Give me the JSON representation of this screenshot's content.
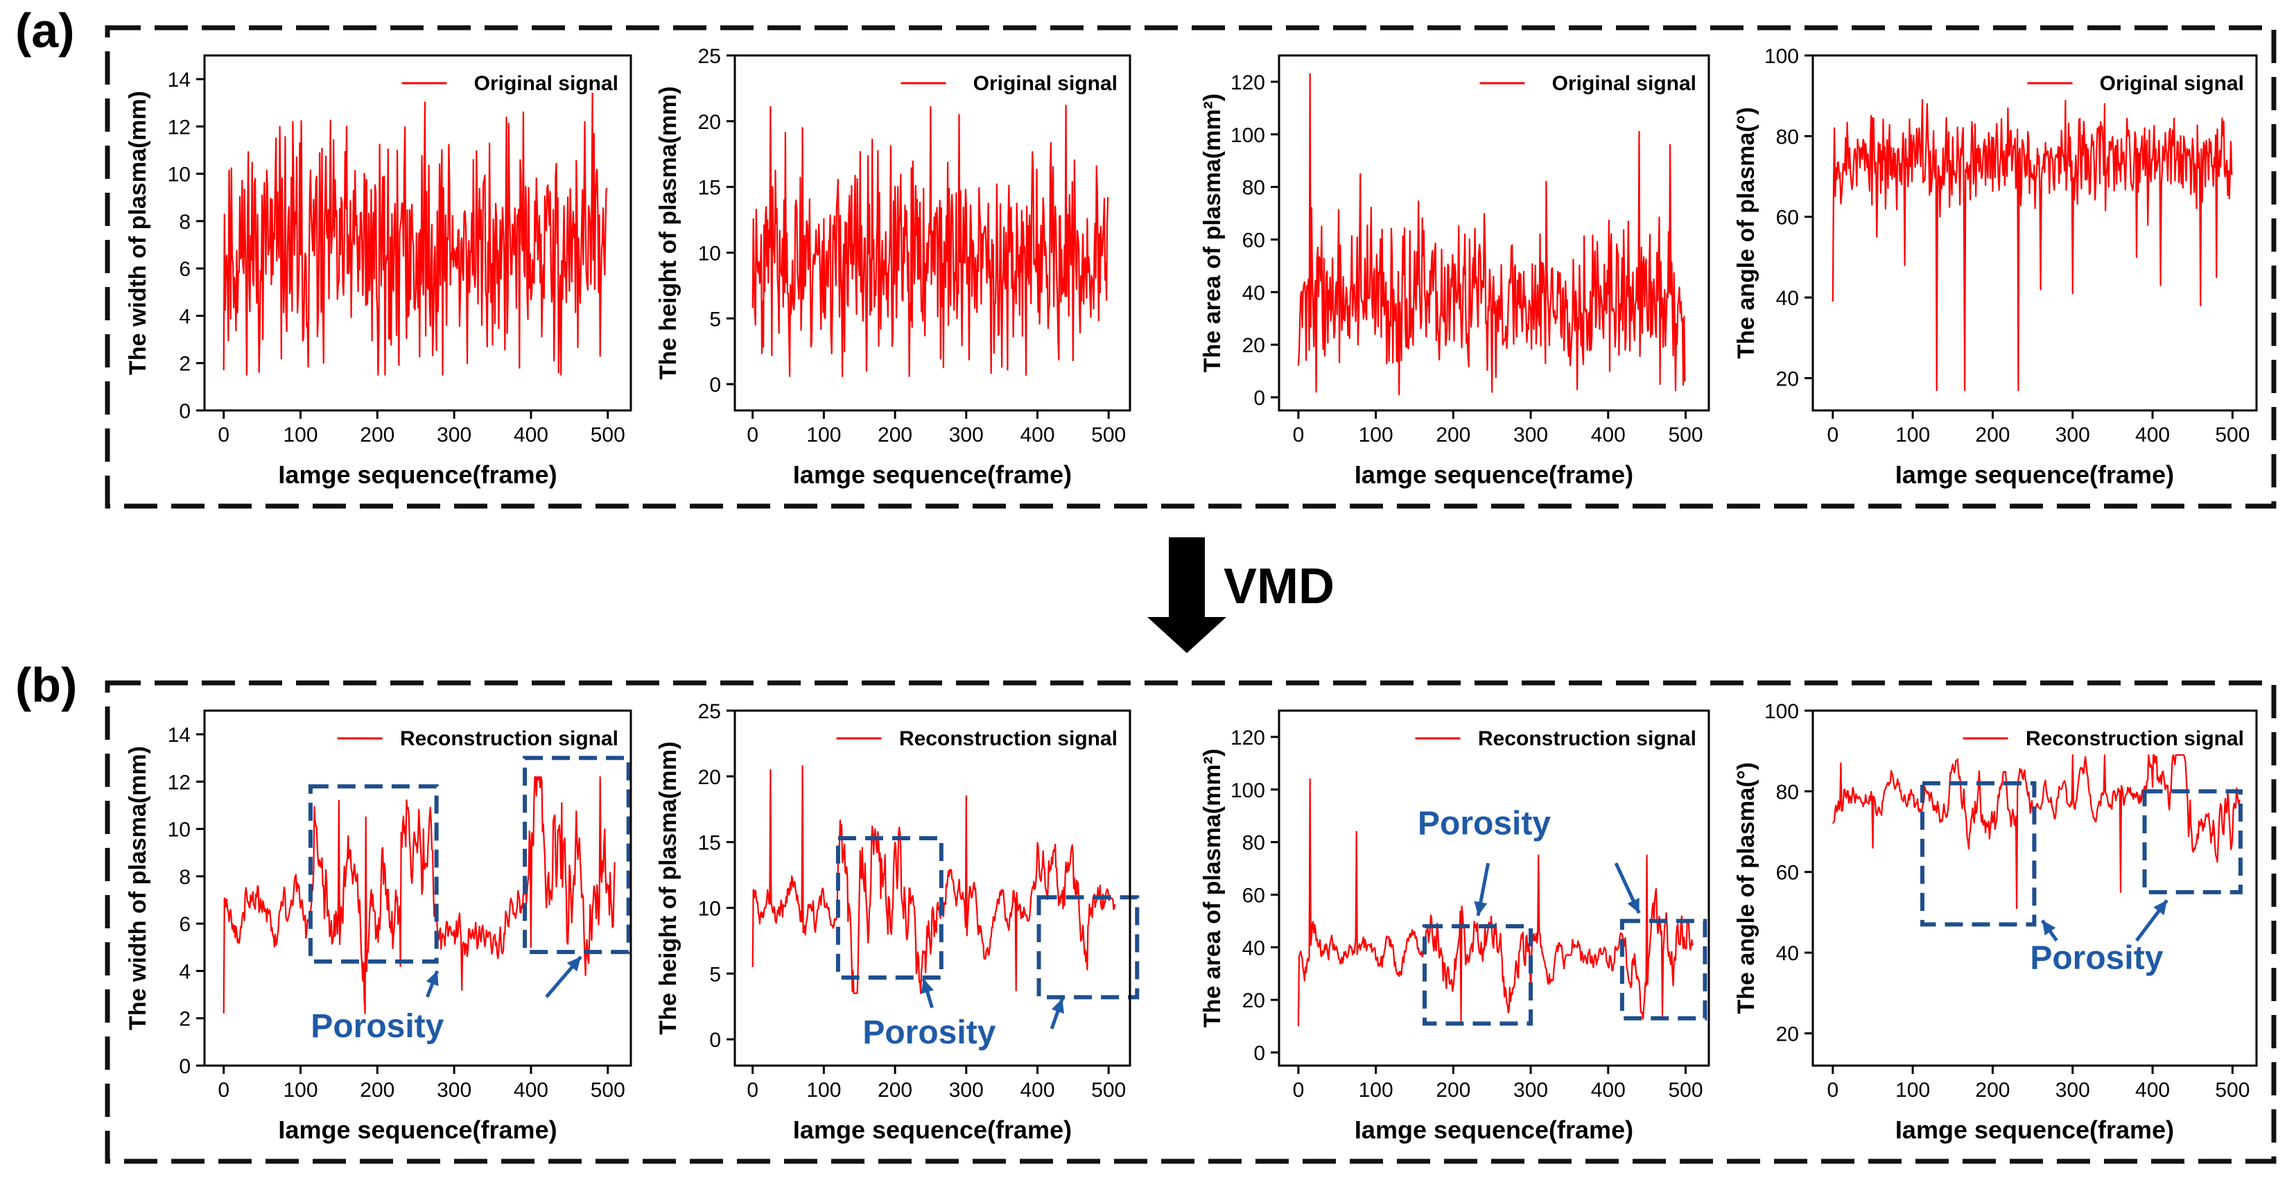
{
  "panel_labels": {
    "a": "(a)",
    "b": "(b)"
  },
  "arrow_label": "VMD",
  "colors": {
    "signal": "#ff0000",
    "box": "#1f4e8c",
    "annotation": "#1f5aa6",
    "frame": "#111111"
  },
  "chart_data": [
    {
      "id": "a1",
      "type": "line",
      "xlabel": "Iamge sequence(frame)",
      "ylabel": "The width of plasma(mm)",
      "legend": "Original signal",
      "xlim": [
        -25,
        530
      ],
      "ylim": [
        0,
        15
      ],
      "xticks": [
        0,
        100,
        200,
        300,
        400,
        500
      ],
      "yticks": [
        0,
        2,
        4,
        6,
        8,
        10,
        12,
        14
      ],
      "series": [
        {
          "name": "Original signal",
          "n": 500,
          "mean": 6.8,
          "amp": 2.4,
          "min_val": 1.5,
          "max_val": 13.4,
          "seed": 11,
          "smooth": 1,
          "spikes": [
            [
              0,
              1.7
            ],
            [
              160,
              12
            ],
            [
              390,
              12.6
            ],
            [
              470,
              12.2
            ],
            [
              480,
              13.4
            ],
            [
              130,
              2.0
            ],
            [
              210,
              1.5
            ],
            [
              385,
              1.8
            ],
            [
              430,
              2.1
            ],
            [
              490,
              2.3
            ]
          ]
        }
      ]
    },
    {
      "id": "a2",
      "type": "line",
      "xlabel": "Iamge sequence(frame)",
      "ylabel": "The height of plasma(mm)",
      "legend": "Original signal",
      "xlim": [
        -25,
        530
      ],
      "ylim": [
        -2,
        25
      ],
      "xticks": [
        0,
        100,
        200,
        300,
        400,
        500
      ],
      "yticks": [
        0,
        5,
        10,
        15,
        20,
        25
      ],
      "series": [
        {
          "name": "Original signal",
          "n": 500,
          "mean": 9.5,
          "amp": 3.6,
          "min_val": 0.6,
          "max_val": 21.3,
          "seed": 23,
          "smooth": 1,
          "spikes": [
            [
              0,
              5.8
            ],
            [
              25,
              21.1
            ],
            [
              250,
              21.1
            ],
            [
              440,
              21.2
            ],
            [
              290,
              20.5
            ],
            [
              70,
              19.5
            ],
            [
              160,
              1.0
            ],
            [
              220,
              0.6
            ],
            [
              350,
              1.3
            ],
            [
              450,
              1.8
            ]
          ]
        }
      ]
    },
    {
      "id": "a3",
      "type": "line",
      "xlabel": "Iamge sequence(frame)",
      "ylabel": "The area of plasma(mm²)",
      "legend": "Original signal",
      "xlim": [
        -25,
        530
      ],
      "ylim": [
        -5,
        130
      ],
      "xticks": [
        0,
        100,
        200,
        300,
        400,
        500
      ],
      "yticks": [
        0,
        20,
        40,
        60,
        80,
        100,
        120
      ],
      "series": [
        {
          "name": "Original signal",
          "n": 500,
          "mean": 37,
          "amp": 14,
          "min_val": 1,
          "max_val": 123,
          "seed": 37,
          "smooth": 1,
          "spikes": [
            [
              0,
              12
            ],
            [
              15,
              123
            ],
            [
              30,
              65
            ],
            [
              80,
              85
            ],
            [
              320,
              82
            ],
            [
              440,
              101
            ],
            [
              480,
              96
            ],
            [
              250,
              2
            ],
            [
              360,
              3
            ],
            [
              500,
              6
            ]
          ]
        }
      ]
    },
    {
      "id": "a4",
      "type": "line",
      "xlabel": "Iamge sequence(frame)",
      "ylabel": "The angle of plasma(°)",
      "legend": "Original signal",
      "xlim": [
        -25,
        530
      ],
      "ylim": [
        12,
        100
      ],
      "xticks": [
        0,
        100,
        200,
        300,
        400,
        500
      ],
      "yticks": [
        20,
        40,
        60,
        80,
        100
      ],
      "series": [
        {
          "name": "Original signal",
          "n": 500,
          "mean": 74,
          "amp": 5.5,
          "min_val": 17,
          "max_val": 89,
          "seed": 53,
          "smooth": 1,
          "spikes": [
            [
              0,
              39
            ],
            [
              2,
              82
            ],
            [
              130,
              17
            ],
            [
              165,
              17
            ],
            [
              232,
              17
            ],
            [
              112,
              89
            ],
            [
              55,
              55
            ],
            [
              90,
              48
            ],
            [
              260,
              42
            ],
            [
              300,
              41
            ],
            [
              380,
              50
            ],
            [
              410,
              43
            ],
            [
              460,
              38
            ],
            [
              480,
              45
            ],
            [
              118,
              88
            ],
            [
              340,
              88
            ]
          ]
        }
      ]
    },
    {
      "id": "b1",
      "type": "line",
      "xlabel": "Iamge sequence(frame)",
      "ylabel": "The width of plasma(mm)",
      "legend": "Reconstruction signal",
      "xlim": [
        -25,
        530
      ],
      "ylim": [
        0,
        15
      ],
      "xticks": [
        0,
        100,
        200,
        300,
        400,
        500
      ],
      "yticks": [
        0,
        2,
        4,
        6,
        8,
        10,
        12,
        14
      ],
      "series": [
        {
          "name": "Reconstruction signal",
          "n": 510,
          "mean": 6.5,
          "amp": 1.2,
          "min_val": 2.2,
          "max_val": 12.2,
          "seed": 71,
          "smooth": 5,
          "spikes": [
            [
              0,
              2.2
            ],
            [
              150,
              11.2
            ],
            [
              185,
              10.5
            ],
            [
              260,
              10.0
            ],
            [
              440,
              11.1
            ],
            [
              490,
              12.2
            ],
            [
              310,
              3.2
            ],
            [
              230,
              4.2
            ],
            [
              400,
              5.0
            ],
            [
              470,
              4.6
            ]
          ],
          "hot": [
            [
              115,
              275,
              2.3
            ],
            [
              395,
              510,
              2.8
            ]
          ]
        }
      ],
      "boxes": [
        [
          113,
          277,
          4.4,
          11.8
        ],
        [
          392,
          527,
          4.8,
          13.0
        ]
      ],
      "annotation": {
        "text": "Porosity",
        "x": 200,
        "y": 1.2,
        "arrows": [
          [
            265,
            2.9,
            278,
            4.0
          ],
          [
            420,
            2.9,
            465,
            4.6
          ]
        ]
      }
    },
    {
      "id": "b2",
      "type": "line",
      "xlabel": "Iamge sequence(frame)",
      "ylabel": "The height of plasma(mm)",
      "legend": "Reconstruction signal",
      "xlim": [
        -25,
        530
      ],
      "ylim": [
        -2,
        25
      ],
      "xticks": [
        0,
        100,
        200,
        300,
        400,
        500
      ],
      "yticks": [
        0,
        5,
        10,
        15,
        20,
        25
      ],
      "series": [
        {
          "name": "Reconstruction signal",
          "n": 510,
          "mean": 10.2,
          "amp": 2.0,
          "min_val": 3.5,
          "max_val": 20.8,
          "seed": 89,
          "smooth": 5,
          "spikes": [
            [
              0,
              5.5
            ],
            [
              25,
              20.5
            ],
            [
              70,
              20.8
            ],
            [
              300,
              18.5
            ],
            [
              230,
              5.0
            ],
            [
              370,
              3.7
            ],
            [
              470,
              5.3
            ]
          ],
          "hot": [
            [
              120,
              260,
              2.5
            ],
            [
              400,
              500,
              1.6
            ]
          ]
        }
      ],
      "boxes": [
        [
          120,
          265,
          4.7,
          15.3
        ],
        [
          402,
          540,
          3.2,
          10.8
        ]
      ],
      "annotation": {
        "text": "Porosity",
        "x": 248,
        "y": -0.3,
        "arrows": [
          [
            252,
            2.4,
            240,
            4.6
          ],
          [
            420,
            0.8,
            435,
            3.1
          ]
        ]
      }
    },
    {
      "id": "b3",
      "type": "line",
      "xlabel": "Iamge sequence(frame)",
      "ylabel": "The area of plasma(mm²)",
      "legend": "Reconstruction signal",
      "xlim": [
        -25,
        530
      ],
      "ylim": [
        -5,
        130
      ],
      "xticks": [
        0,
        100,
        200,
        300,
        400,
        500
      ],
      "yticks": [
        0,
        20,
        40,
        60,
        80,
        100,
        120
      ],
      "series": [
        {
          "name": "Reconstruction signal",
          "n": 510,
          "mean": 40,
          "amp": 7,
          "min_val": 9,
          "max_val": 104,
          "seed": 101,
          "smooth": 5,
          "spikes": [
            [
              0,
              10
            ],
            [
              15,
              104
            ],
            [
              75,
              84
            ],
            [
              310,
              75
            ],
            [
              450,
              75
            ],
            [
              210,
              12
            ],
            [
              300,
              20
            ],
            [
              470,
              14
            ]
          ],
          "hot": [
            [
              165,
              295,
              2.0
            ],
            [
              420,
              505,
              2.3
            ]
          ]
        }
      ],
      "boxes": [
        [
          163,
          300,
          11,
          48
        ],
        [
          418,
          525,
          13,
          50
        ]
      ],
      "annotation": {
        "text": "Porosity",
        "x": 240,
        "y": 83,
        "arrows": [
          [
            245,
            72,
            232,
            52
          ],
          [
            410,
            72,
            440,
            53
          ]
        ]
      }
    },
    {
      "id": "b4",
      "type": "line",
      "xlabel": "Iamge sequence(frame)",
      "ylabel": "The angle of plasma(°)",
      "legend": "Reconstruction signal",
      "xlim": [
        -25,
        530
      ],
      "ylim": [
        12,
        100
      ],
      "xticks": [
        0,
        100,
        200,
        300,
        400,
        500
      ],
      "yticks": [
        20,
        40,
        60,
        80,
        100
      ],
      "series": [
        {
          "name": "Reconstruction signal",
          "n": 510,
          "mean": 78,
          "amp": 4.5,
          "min_val": 51,
          "max_val": 89,
          "seed": 131,
          "smooth": 6,
          "spikes": [
            [
              0,
              72
            ],
            [
              10,
              87
            ],
            [
              300,
              89
            ],
            [
              340,
              89
            ],
            [
              230,
              51
            ],
            [
              50,
              66
            ],
            [
              360,
              55
            ]
          ],
          "hot": [
            [
              115,
              250,
              1.8
            ],
            [
              395,
              505,
              2.4
            ]
          ]
        }
      ],
      "boxes": [
        [
          112,
          252,
          47,
          82
        ],
        [
          390,
          510,
          55,
          80
        ]
      ],
      "annotation": {
        "text": "Porosity",
        "x": 330,
        "y": 36,
        "arrows": [
          [
            280,
            43,
            262,
            48
          ],
          [
            380,
            43,
            418,
            53
          ]
        ]
      }
    }
  ]
}
